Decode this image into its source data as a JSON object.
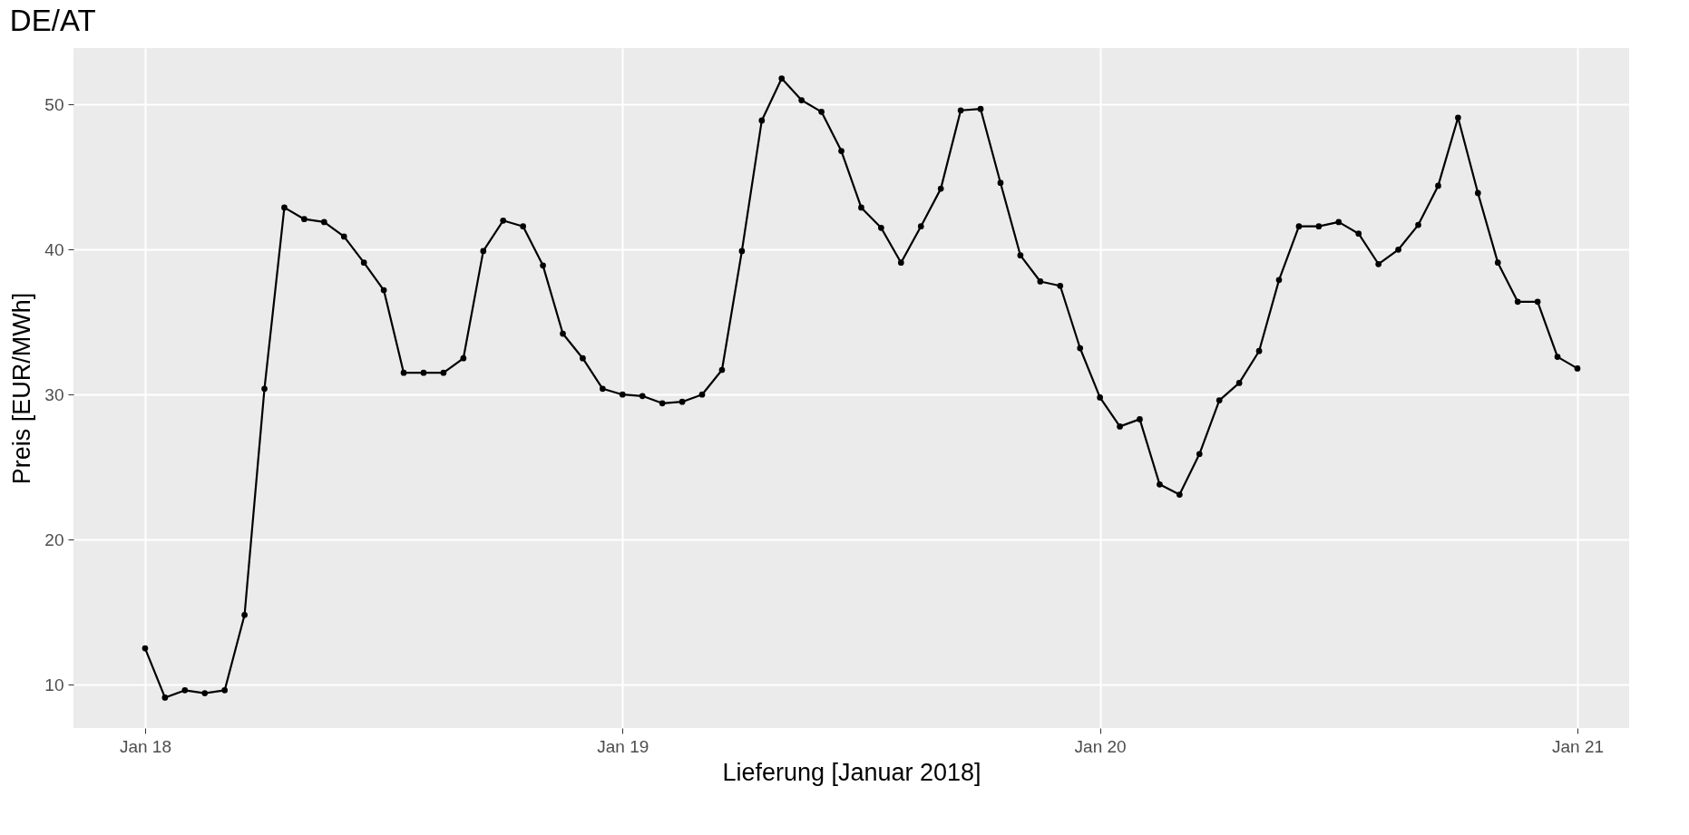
{
  "chart_data": {
    "type": "line",
    "title": "DE/AT",
    "xlabel": "Lieferung [Januar 2018]",
    "ylabel": "Preis [EUR/MWh]",
    "x": [
      "2018-01-18T00:00",
      "2018-01-18T01:00",
      "2018-01-18T02:00",
      "2018-01-18T03:00",
      "2018-01-18T04:00",
      "2018-01-18T05:00",
      "2018-01-18T06:00",
      "2018-01-18T07:00",
      "2018-01-18T08:00",
      "2018-01-18T09:00",
      "2018-01-18T10:00",
      "2018-01-18T11:00",
      "2018-01-18T12:00",
      "2018-01-18T13:00",
      "2018-01-18T14:00",
      "2018-01-18T15:00",
      "2018-01-18T16:00",
      "2018-01-18T17:00",
      "2018-01-18T18:00",
      "2018-01-18T19:00",
      "2018-01-18T20:00",
      "2018-01-18T21:00",
      "2018-01-18T22:00",
      "2018-01-18T23:00",
      "2018-01-19T00:00",
      "2018-01-19T01:00",
      "2018-01-19T02:00",
      "2018-01-19T03:00",
      "2018-01-19T04:00",
      "2018-01-19T05:00",
      "2018-01-19T06:00",
      "2018-01-19T07:00",
      "2018-01-19T08:00",
      "2018-01-19T09:00",
      "2018-01-19T10:00",
      "2018-01-19T11:00",
      "2018-01-19T12:00",
      "2018-01-19T13:00",
      "2018-01-19T14:00",
      "2018-01-19T15:00",
      "2018-01-19T16:00",
      "2018-01-19T17:00",
      "2018-01-19T18:00",
      "2018-01-19T19:00",
      "2018-01-19T20:00",
      "2018-01-19T21:00",
      "2018-01-19T22:00",
      "2018-01-19T23:00",
      "2018-01-20T00:00",
      "2018-01-20T01:00",
      "2018-01-20T02:00",
      "2018-01-20T03:00",
      "2018-01-20T04:00",
      "2018-01-20T05:00",
      "2018-01-20T06:00",
      "2018-01-20T07:00",
      "2018-01-20T08:00",
      "2018-01-20T09:00",
      "2018-01-20T10:00",
      "2018-01-20T11:00",
      "2018-01-20T12:00",
      "2018-01-20T13:00",
      "2018-01-20T14:00",
      "2018-01-20T15:00",
      "2018-01-20T16:00",
      "2018-01-20T17:00",
      "2018-01-20T18:00",
      "2018-01-20T19:00",
      "2018-01-20T20:00",
      "2018-01-20T21:00",
      "2018-01-20T22:00",
      "2018-01-20T23:00",
      "2018-01-21T00:00"
    ],
    "series": [
      {
        "color": "#000000",
        "values": [
          12.5,
          9.1,
          9.6,
          9.4,
          9.6,
          14.8,
          30.4,
          42.9,
          42.1,
          41.9,
          40.9,
          39.1,
          37.2,
          31.5,
          31.5,
          31.5,
          32.5,
          39.9,
          42.0,
          41.6,
          38.9,
          34.2,
          32.5,
          30.4,
          30.0,
          29.9,
          29.4,
          29.5,
          30.0,
          31.7,
          39.9,
          48.9,
          51.8,
          50.3,
          49.5,
          46.8,
          42.9,
          41.5,
          39.1,
          41.6,
          44.2,
          49.6,
          49.7,
          44.6,
          39.6,
          37.8,
          37.5,
          33.2,
          29.8,
          27.8,
          28.3,
          23.8,
          23.1,
          25.9,
          29.6,
          30.8,
          33.0,
          37.9,
          41.6,
          41.6,
          41.9,
          41.1,
          39.0,
          40.0,
          41.7,
          44.4,
          49.1,
          43.9,
          39.1,
          36.4,
          36.4,
          32.6,
          31.8
        ]
      }
    ],
    "xlim": [
      "2018-01-17T20:24",
      "2018-01-21T02:36"
    ],
    "xticks": [
      {
        "value": "2018-01-18",
        "label": "Jan 18"
      },
      {
        "value": "2018-01-19",
        "label": "Jan 19"
      },
      {
        "value": "2018-01-20",
        "label": "Jan 20"
      },
      {
        "value": "2018-01-21",
        "label": "Jan 21"
      }
    ],
    "ylim": [
      7.0,
      53.9
    ],
    "yticks": [
      10,
      20,
      30,
      40,
      50
    ],
    "grid": true,
    "marker": "circle",
    "line_style": "solid"
  }
}
